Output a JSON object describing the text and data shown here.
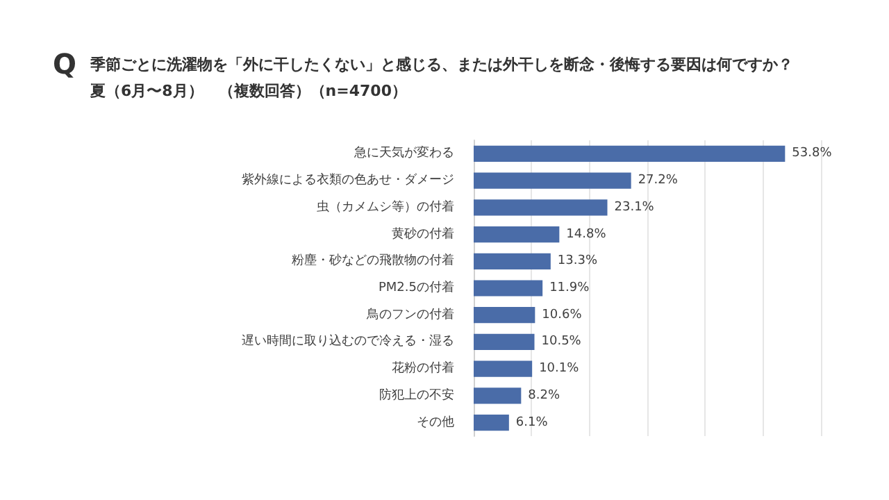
{
  "chart_data": {
    "type": "bar",
    "orientation": "horizontal",
    "title": "季節ごとに洗濯物を「外に干したくない」と感じる、または外干しを断念・後悔する要因は何ですか？",
    "subtitle": "夏（6月〜8月）　（複数回答）（n=4700）",
    "annotations": [
      "Q"
    ],
    "categories": [
      "急に天気が変わる",
      "紫外線による衣類の色あせ・ダメージ",
      "虫（カメムシ等）の付着",
      "黄砂の付着",
      "粉塵・砂などの飛散物の付着",
      "PM2.5の付着",
      "鳥のフンの付着",
      "遅い時間に取り込むので冷える・湿る",
      "花粉の付着",
      "防犯上の不安",
      "その他"
    ],
    "values": [
      53.8,
      27.2,
      23.1,
      14.8,
      13.3,
      11.9,
      10.6,
      10.5,
      10.1,
      8.2,
      6.1
    ],
    "value_labels": [
      "53.8%",
      "27.2%",
      "23.1%",
      "14.8%",
      "13.3%",
      "11.9%",
      "10.6%",
      "10.5%",
      "10.1%",
      "8.2%",
      "6.1%"
    ],
    "color": "#4a6ca8",
    "xlim": [
      0,
      60
    ],
    "xticks": [
      {
        "value": 0,
        "label": null
      },
      {
        "value": 10,
        "label": null
      },
      {
        "value": 20,
        "label": null
      },
      {
        "value": 30,
        "label": null
      },
      {
        "value": 40,
        "label": null
      },
      {
        "value": 50,
        "label": null
      },
      {
        "value": 60,
        "label": null
      }
    ],
    "tick_labels": "y",
    "grid": "x"
  }
}
